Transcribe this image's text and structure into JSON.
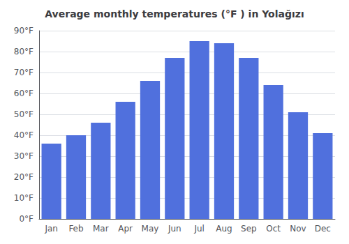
{
  "chart_data": {
    "type": "bar",
    "title": "Average monthly temperatures (°F ) in Yolağızı",
    "categories": [
      "Jan",
      "Feb",
      "Mar",
      "Apr",
      "May",
      "Jun",
      "Jul",
      "Aug",
      "Sep",
      "Oct",
      "Nov",
      "Dec"
    ],
    "values": [
      36,
      40,
      46,
      56,
      66,
      77,
      85,
      84,
      77,
      64,
      51,
      41
    ],
    "ylim": [
      0,
      90
    ],
    "yticks": [
      {
        "value": 0,
        "label": "0°F"
      },
      {
        "value": 10,
        "label": "10°F"
      },
      {
        "value": 20,
        "label": "20°F"
      },
      {
        "value": 30,
        "label": "30°F"
      },
      {
        "value": 40,
        "label": "40°F"
      },
      {
        "value": 50,
        "label": "50°F"
      },
      {
        "value": 60,
        "label": "60°F"
      },
      {
        "value": 70,
        "label": "70°F"
      },
      {
        "value": 80,
        "label": "80°F"
      },
      {
        "value": 90,
        "label": "90°F"
      }
    ],
    "grid": true
  }
}
